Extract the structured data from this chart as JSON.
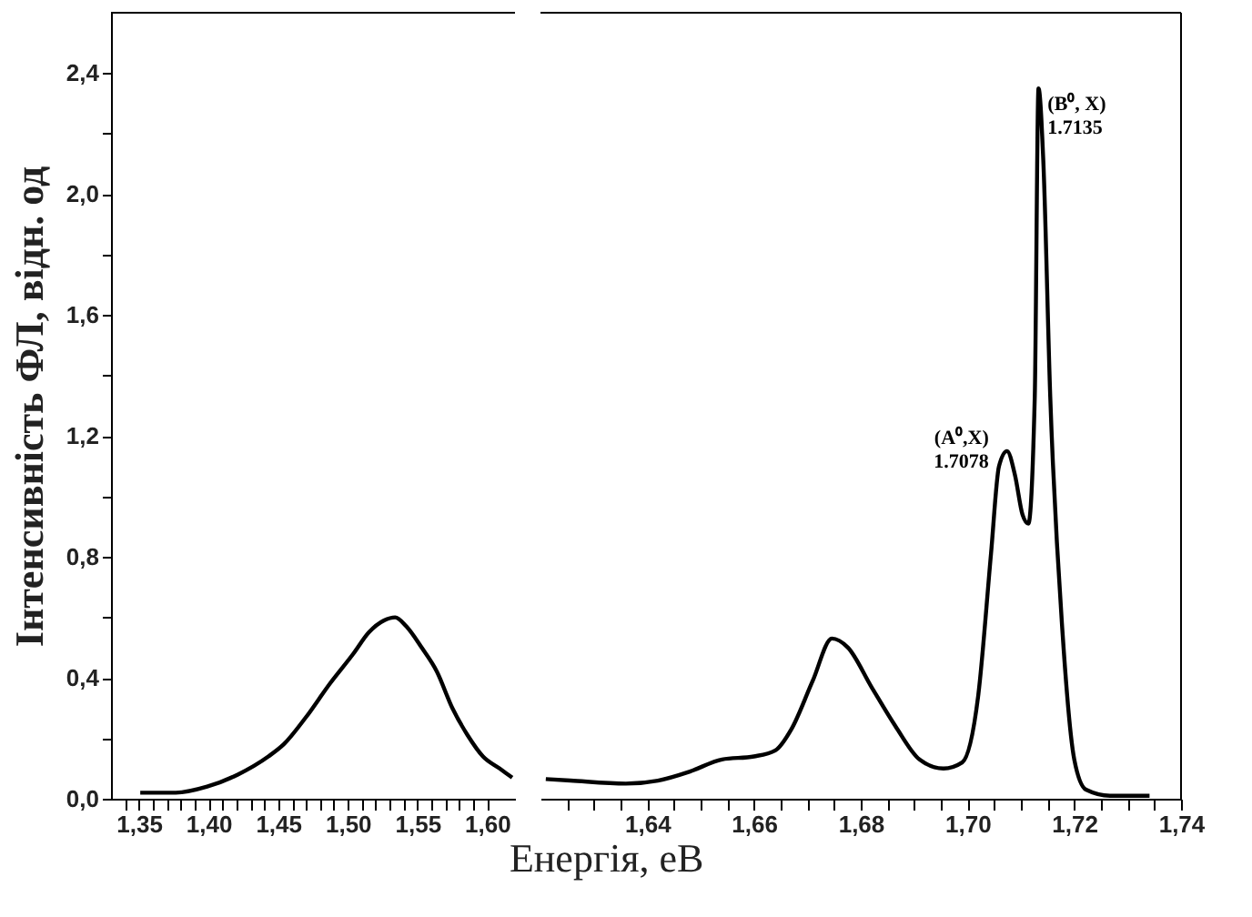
{
  "chart_data": [
    {
      "type": "line",
      "ylabel": "Інтенсивність ФЛ, відн. од",
      "xlabel": "Енергія, еВ",
      "grid": false,
      "x": [
        1.351,
        1.3765,
        1.399,
        1.421,
        1.443,
        1.454,
        1.47,
        1.487,
        1.504,
        1.515,
        1.526,
        1.534,
        1.542,
        1.553,
        1.564,
        1.575,
        1.586,
        1.597,
        1.609,
        1.618
      ],
      "series": [
        {
          "color": "#000000",
          "values": [
            0.02,
            0.02,
            0.04,
            0.08,
            0.14,
            0.18,
            0.27,
            0.38,
            0.48,
            0.55,
            0.59,
            0.6,
            0.57,
            0.5,
            0.42,
            0.3,
            0.21,
            0.14,
            0.1,
            0.07
          ]
        }
      ],
      "xlim": [
        1.33,
        1.62
      ],
      "xticks": [
        {
          "value": 1.34,
          "label": null
        },
        {
          "value": 1.35,
          "label": "1,35"
        },
        {
          "value": 1.36,
          "label": null
        },
        {
          "value": 1.37,
          "label": null
        },
        {
          "value": 1.38,
          "label": null
        },
        {
          "value": 1.39,
          "label": null
        },
        {
          "value": 1.4,
          "label": "1,40"
        },
        {
          "value": 1.41,
          "label": null
        },
        {
          "value": 1.42,
          "label": null
        },
        {
          "value": 1.43,
          "label": null
        },
        {
          "value": 1.44,
          "label": null
        },
        {
          "value": 1.45,
          "label": "1,45"
        },
        {
          "value": 1.46,
          "label": null
        },
        {
          "value": 1.47,
          "label": null
        },
        {
          "value": 1.48,
          "label": null
        },
        {
          "value": 1.49,
          "label": null
        },
        {
          "value": 1.5,
          "label": "1,50"
        },
        {
          "value": 1.51,
          "label": null
        },
        {
          "value": 1.52,
          "label": null
        },
        {
          "value": 1.53,
          "label": null
        },
        {
          "value": 1.54,
          "label": null
        },
        {
          "value": 1.55,
          "label": "1,55"
        },
        {
          "value": 1.56,
          "label": null
        },
        {
          "value": 1.57,
          "label": null
        },
        {
          "value": 1.58,
          "label": null
        },
        {
          "value": 1.59,
          "label": null
        },
        {
          "value": 1.6,
          "label": "1,60"
        }
      ],
      "ylim": [
        0,
        2.6
      ],
      "yticks": [
        {
          "value": 0,
          "label": "0,0"
        },
        {
          "value": 0.2,
          "label": null
        },
        {
          "value": 0.4,
          "label": "0,4"
        },
        {
          "value": 0.6,
          "label": null
        },
        {
          "value": 0.8,
          "label": "0,8"
        },
        {
          "value": 1.0,
          "label": null
        },
        {
          "value": 1.2,
          "label": "1,2"
        },
        {
          "value": 1.4,
          "label": null
        },
        {
          "value": 1.6,
          "label": "1,6"
        },
        {
          "value": 1.8,
          "label": null
        },
        {
          "value": 2.0,
          "label": "2,0"
        },
        {
          "value": 2.2,
          "label": null
        },
        {
          "value": 2.4,
          "label": "2,4"
        }
      ]
    },
    {
      "type": "line",
      "grid": false,
      "tick_labels": "x",
      "x": [
        1.621,
        1.6256,
        1.636,
        1.642,
        1.648,
        1.654,
        1.66,
        1.664,
        1.667,
        1.671,
        1.6746,
        1.6776,
        1.682,
        1.6865,
        1.691,
        1.6955,
        1.699,
        1.702,
        1.7044,
        1.7059,
        1.7074,
        1.7089,
        1.7103,
        1.7114,
        1.7126,
        1.7133,
        1.7142,
        1.7155,
        1.7178,
        1.72,
        1.7222,
        1.7267,
        1.7341
      ],
      "series": [
        {
          "color": "#000000",
          "values": [
            0.065,
            0.06,
            0.05,
            0.06,
            0.09,
            0.13,
            0.14,
            0.16,
            0.23,
            0.39,
            0.53,
            0.5,
            0.37,
            0.24,
            0.13,
            0.1,
            0.12,
            0.34,
            0.81,
            1.1,
            1.15,
            1.07,
            0.94,
            0.91,
            1.33,
            2.35,
            2.11,
            1.33,
            0.55,
            0.13,
            0.03,
            0.01,
            0.01
          ]
        }
      ],
      "xlim": [
        1.62,
        1.74
      ],
      "xticks": [
        {
          "value": 1.625,
          "label": null
        },
        {
          "value": 1.63,
          "label": null
        },
        {
          "value": 1.635,
          "label": null
        },
        {
          "value": 1.64,
          "label": "1,64"
        },
        {
          "value": 1.645,
          "label": null
        },
        {
          "value": 1.65,
          "label": null
        },
        {
          "value": 1.655,
          "label": null
        },
        {
          "value": 1.66,
          "label": "1,66"
        },
        {
          "value": 1.665,
          "label": null
        },
        {
          "value": 1.67,
          "label": null
        },
        {
          "value": 1.675,
          "label": null
        },
        {
          "value": 1.68,
          "label": "1,68"
        },
        {
          "value": 1.685,
          "label": null
        },
        {
          "value": 1.69,
          "label": null
        },
        {
          "value": 1.695,
          "label": null
        },
        {
          "value": 1.7,
          "label": "1,70"
        },
        {
          "value": 1.705,
          "label": null
        },
        {
          "value": 1.71,
          "label": null
        },
        {
          "value": 1.715,
          "label": null
        },
        {
          "value": 1.72,
          "label": "1,72"
        },
        {
          "value": 1.725,
          "label": null
        },
        {
          "value": 1.73,
          "label": null
        },
        {
          "value": 1.735,
          "label": null
        },
        {
          "value": 1.74,
          "label": "1,74"
        }
      ],
      "ylim": [
        0,
        2.6
      ],
      "annotations": [
        {
          "text": "(A⁰,X)\n1.7078",
          "x": 1.7074,
          "y": 1.15
        },
        {
          "text": "(B⁰, X)\n1.7135",
          "x": 1.7133,
          "y": 2.35
        }
      ]
    }
  ]
}
